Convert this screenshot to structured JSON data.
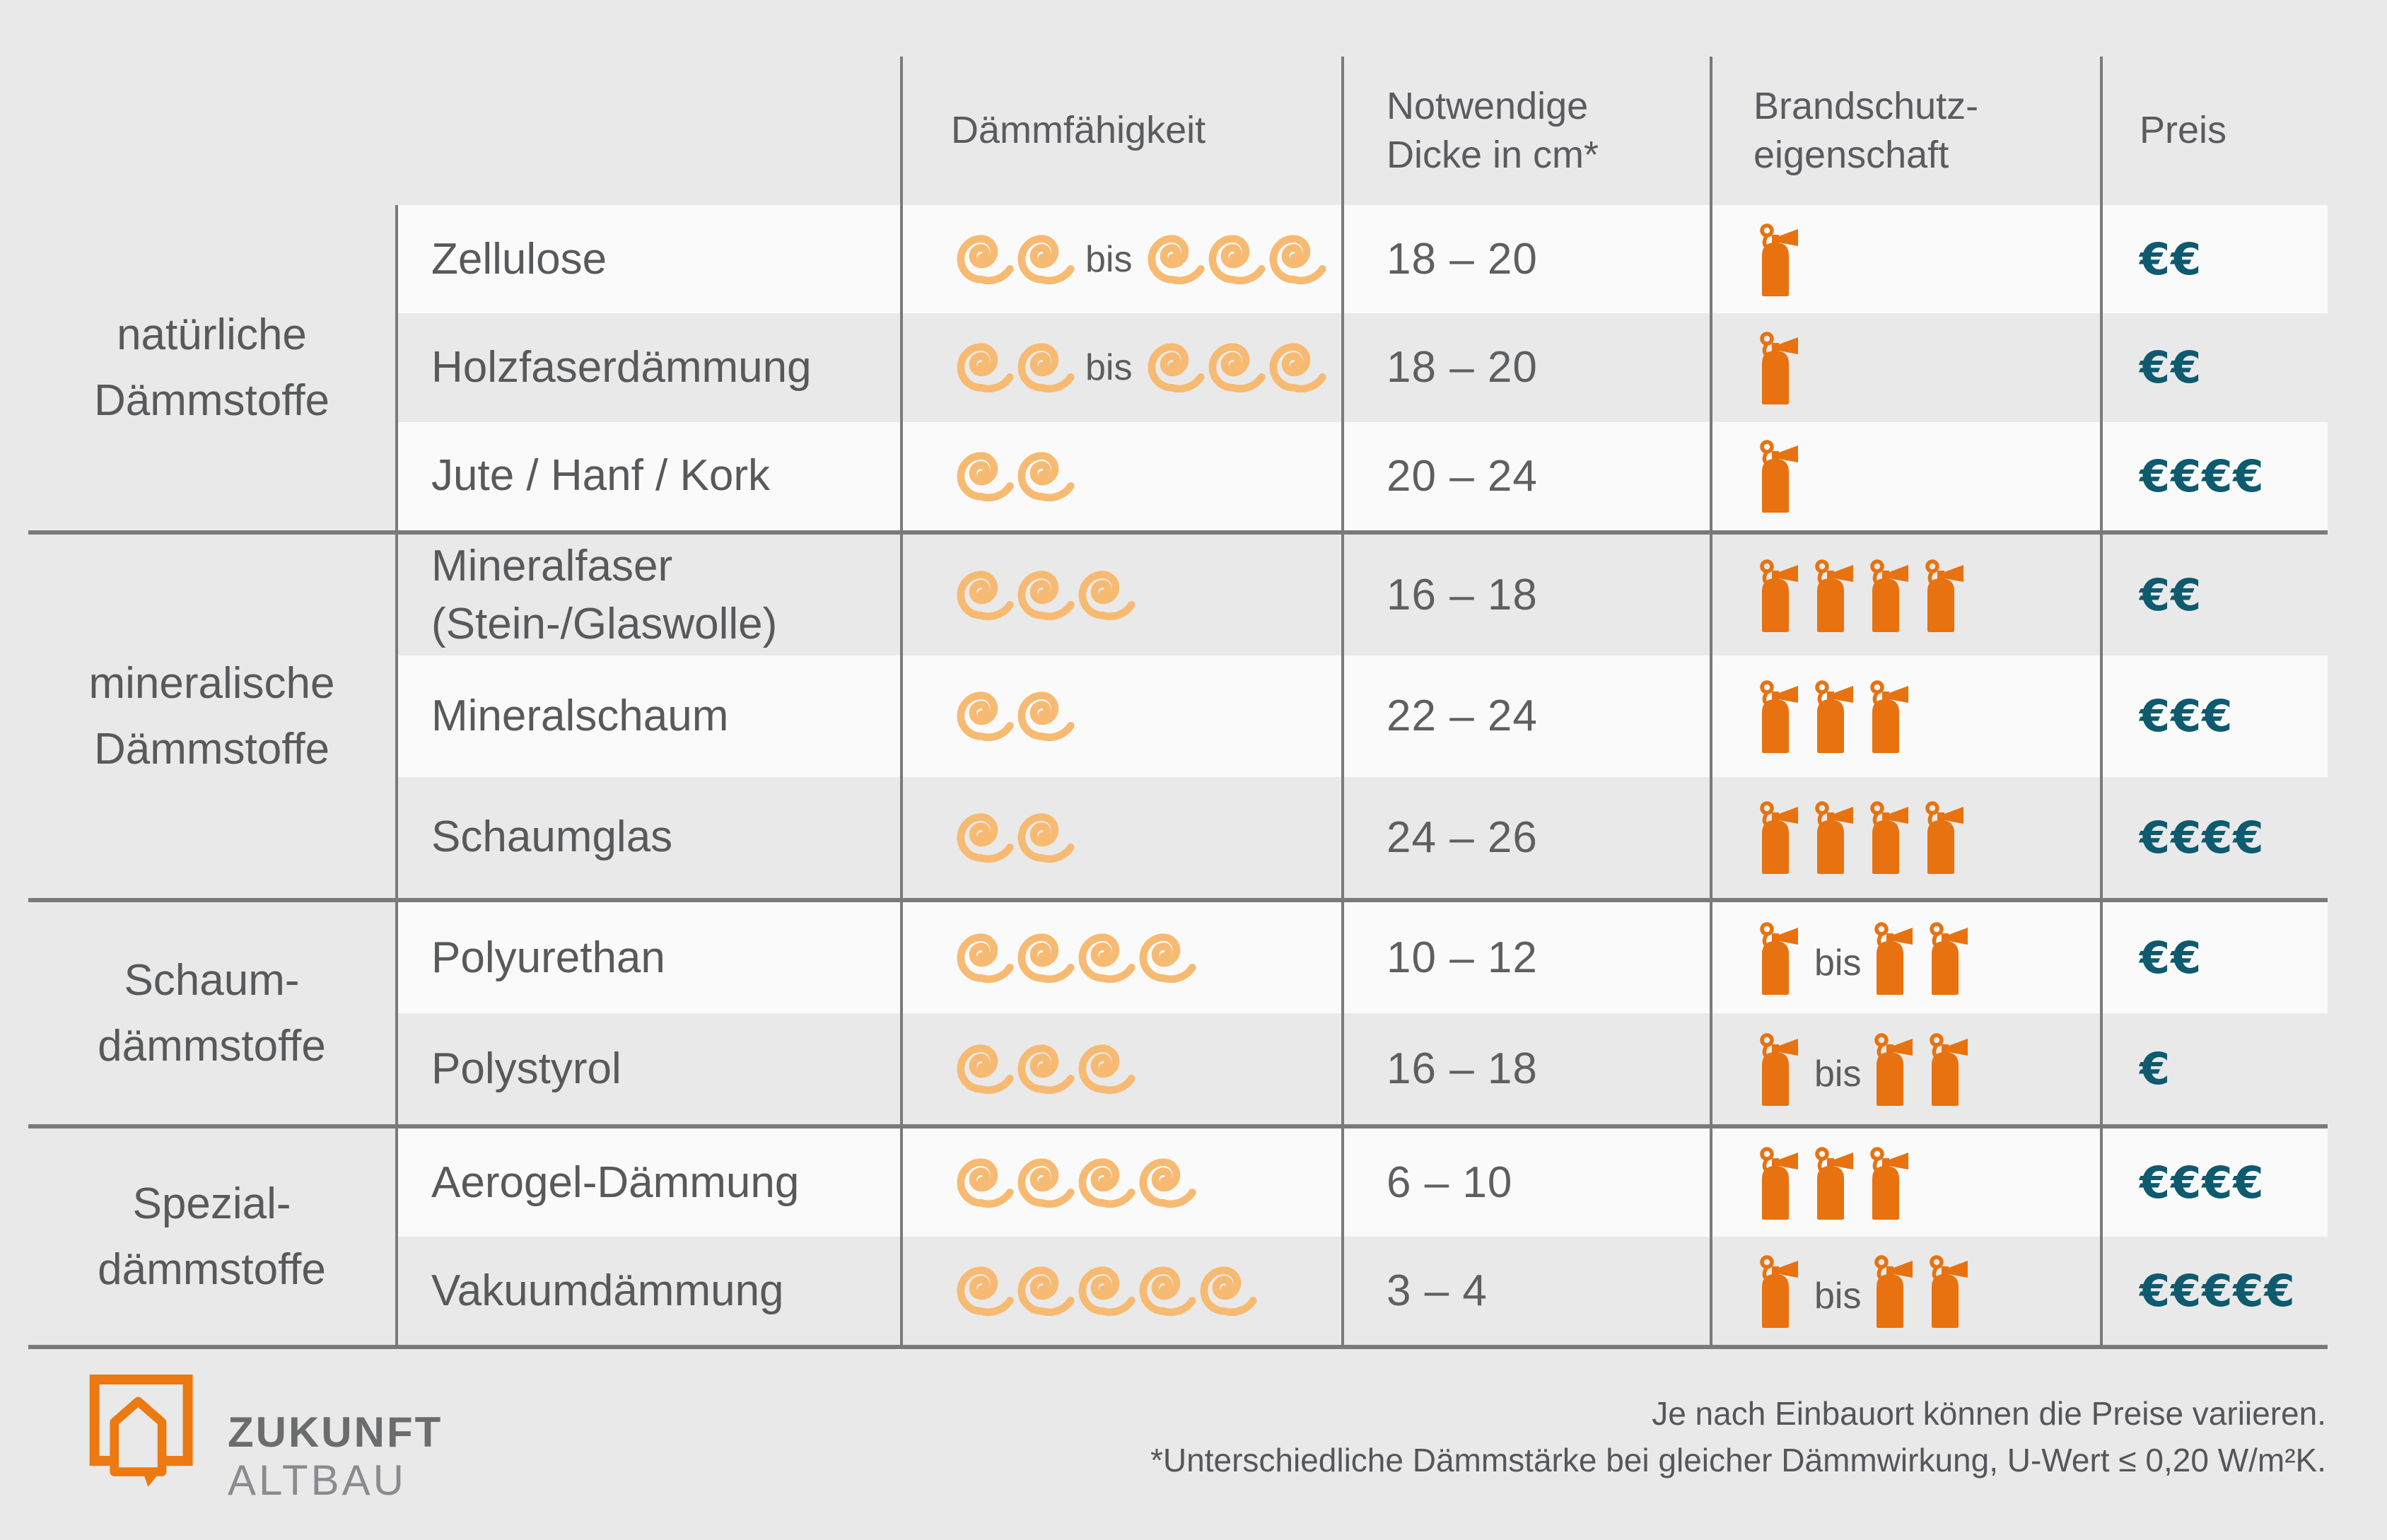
{
  "labels": {
    "bis": "bis"
  },
  "header": {
    "columns": [
      "Dämmfähigkeit",
      "Notwendige\nDicke in cm*",
      "Brandschutz-\neigenschaft",
      "Preis"
    ]
  },
  "groups": [
    {
      "category": "natürliche\nDämmstoffe",
      "rows": [
        {
          "material": "Zellulose",
          "insulation_min": 2,
          "insulation_max": 3,
          "thickness": "18 – 20",
          "extinguishers_min": 1,
          "extinguishers_max": null,
          "price": "€€"
        },
        {
          "material": "Holzfaserdämmung",
          "insulation_min": 2,
          "insulation_max": 3,
          "thickness": "18 – 20",
          "extinguishers_min": 1,
          "extinguishers_max": null,
          "price": "€€"
        },
        {
          "material": "Jute / Hanf / Kork",
          "insulation_min": 2,
          "insulation_max": null,
          "thickness": "20 – 24",
          "extinguishers_min": 1,
          "extinguishers_max": null,
          "price": "€€€€"
        }
      ]
    },
    {
      "category": "mineralische\nDämmstoffe",
      "rows": [
        {
          "material": "Mineralfaser\n(Stein-/Glaswolle)",
          "insulation_min": 3,
          "insulation_max": null,
          "thickness": "16 – 18",
          "extinguishers_min": 4,
          "extinguishers_max": null,
          "price": "€€"
        },
        {
          "material": "Mineralschaum",
          "insulation_min": 2,
          "insulation_max": null,
          "thickness": "22 – 24",
          "extinguishers_min": 3,
          "extinguishers_max": null,
          "price": "€€€"
        },
        {
          "material": "Schaumglas",
          "insulation_min": 2,
          "insulation_max": null,
          "thickness": "24 – 26",
          "extinguishers_min": 4,
          "extinguishers_max": null,
          "price": "€€€€"
        }
      ]
    },
    {
      "category": "Schaum-\ndämmstoffe",
      "rows": [
        {
          "material": "Polyurethan",
          "insulation_min": 4,
          "insulation_max": null,
          "thickness": "10 – 12",
          "extinguishers_min": 1,
          "extinguishers_max": 2,
          "price": "€€"
        },
        {
          "material": "Polystyrol",
          "insulation_min": 3,
          "insulation_max": null,
          "thickness": "16 – 18",
          "extinguishers_min": 1,
          "extinguishers_max": 2,
          "price": "€"
        }
      ]
    },
    {
      "category": "Spezial-\ndämmstoffe",
      "rows": [
        {
          "material": "Aerogel-Dämmung",
          "insulation_min": 4,
          "insulation_max": null,
          "thickness": "6 – 10",
          "extinguishers_min": 3,
          "extinguishers_max": null,
          "price": "€€€€"
        },
        {
          "material": "Vakuumdämmung",
          "insulation_min": 5,
          "insulation_max": null,
          "thickness": "3 – 4",
          "extinguishers_min": 1,
          "extinguishers_max": 2,
          "price": "€€€€€"
        }
      ]
    }
  ],
  "footnotes": [
    "Je nach Einbauort können die Preise variieren.",
    "*Unterschiedliche Dämmstärke bei gleicher Dämmwirkung, U-Wert ≤ 0,20 W/m²K."
  ],
  "logo": {
    "line1": "ZUKUNFT",
    "line2": "ALTBAU"
  },
  "icons": {
    "insulation": "spiral-icon",
    "fire_protection": "fire-extinguisher-icon",
    "logo": "house-speech-bubble-icon"
  },
  "colors": {
    "background": "#E9E9E9",
    "row_white": "#FAFAFA",
    "row_gray": "#E9E9E9",
    "line_gray": "#7A7A7A",
    "text_gray": "#58595B",
    "spiral_orange": "#F7BA72",
    "extinguisher_orange": "#E8720F",
    "logo_orange": "#ED7912",
    "euro_teal": "#0E5A6F"
  }
}
